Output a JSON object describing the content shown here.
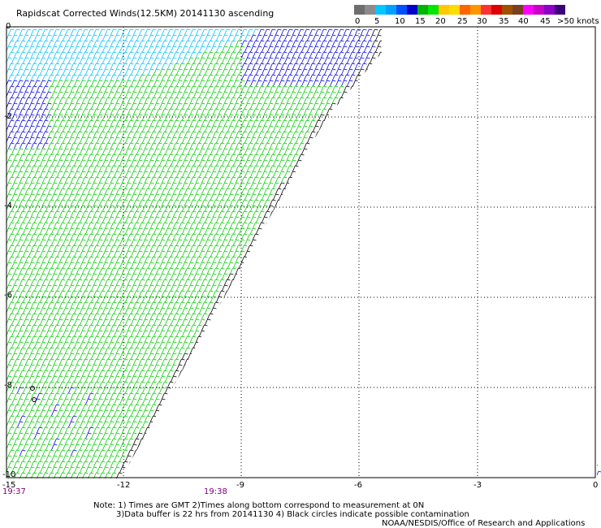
{
  "title": "Rapidscat Corrected Winds(12.5KM) 20141130 ascending",
  "speed_scale": {
    "colors": [
      "#6e6e6e",
      "#8c8c8c",
      "#00c8ff",
      "#00a0ff",
      "#0050ff",
      "#0000c8",
      "#00b400",
      "#00e600",
      "#ffc800",
      "#ffdc00",
      "#ff6400",
      "#ff9600",
      "#ff3232",
      "#dc0000",
      "#a05000",
      "#784020",
      "#ff00ff",
      "#c800c8",
      "#8c00c8",
      "#3c0078"
    ],
    "labels": [
      "0",
      "5",
      "10",
      "15",
      "20",
      "25",
      "30",
      "35",
      "40",
      "45",
      ">50 knots"
    ],
    "label_x": [
      437,
      461,
      486,
      511,
      536,
      563,
      587,
      614,
      638,
      665,
      686
    ]
  },
  "axes": {
    "y_ticks": [
      "0",
      "-2",
      "-4",
      "-6",
      "-8",
      "-10"
    ],
    "x_ticks": [
      "-15",
      "-12",
      "-9",
      "-6",
      "-3",
      "0"
    ]
  },
  "time_labels": [
    "19:37",
    "19:38"
  ],
  "notes": {
    "line1": "Note: 1) Times are GMT 2)Times along bottom correspond to measurement at 0N",
    "line2": "3)Data buffer is 22 hrs from 20141130 4) Black circles indicate possible contamination",
    "credit": "NOAA/NESDIS/Office of Research and Applications"
  },
  "barb_colors": {
    "light": "#00c0ff",
    "blue": "#0000dd",
    "green": "#00cc00",
    "edge": "#000000"
  }
}
